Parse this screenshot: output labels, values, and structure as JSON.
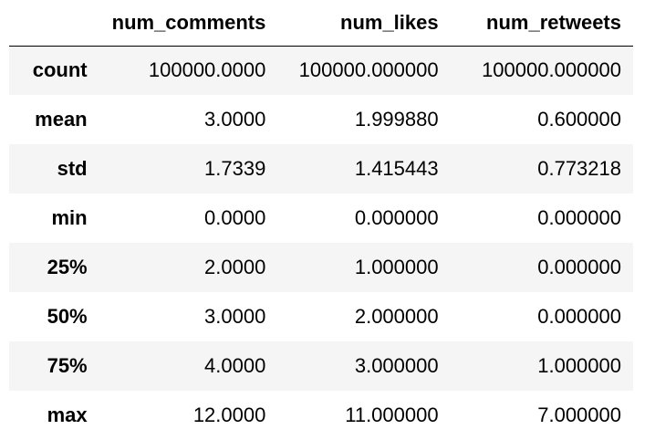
{
  "table": {
    "columns": [
      "num_comments",
      "num_likes",
      "num_retweets"
    ],
    "rows": [
      {
        "label": "count",
        "values": [
          "100000.0000",
          "100000.000000",
          "100000.000000"
        ]
      },
      {
        "label": "mean",
        "values": [
          "3.0000",
          "1.999880",
          "0.600000"
        ]
      },
      {
        "label": "std",
        "values": [
          "1.7339",
          "1.415443",
          "0.773218"
        ]
      },
      {
        "label": "min",
        "values": [
          "0.0000",
          "0.000000",
          "0.000000"
        ]
      },
      {
        "label": "25%",
        "values": [
          "2.0000",
          "1.000000",
          "0.000000"
        ]
      },
      {
        "label": "50%",
        "values": [
          "3.0000",
          "2.000000",
          "0.000000"
        ]
      },
      {
        "label": "75%",
        "values": [
          "4.0000",
          "3.000000",
          "1.000000"
        ]
      },
      {
        "label": "max",
        "values": [
          "12.0000",
          "11.000000",
          "7.000000"
        ]
      }
    ]
  },
  "colors": {
    "striped_row": "#f5f5f5",
    "header_rule": "#000000"
  }
}
